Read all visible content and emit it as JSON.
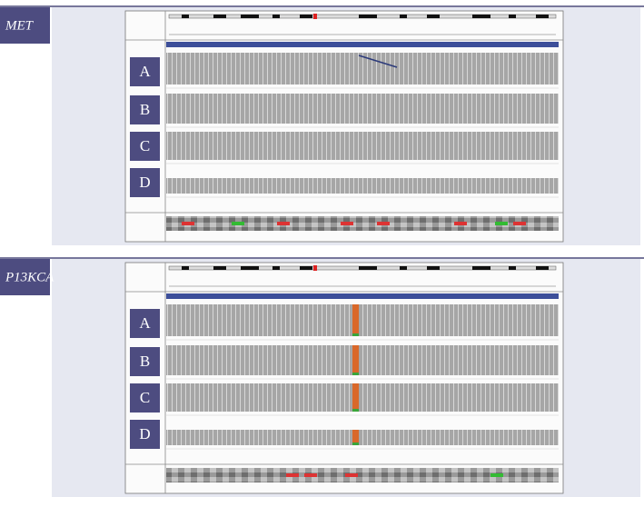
{
  "panels": [
    {
      "label": "MET",
      "tracks": [
        "A",
        "B",
        "C",
        "D"
      ]
    },
    {
      "label": "P13KCA",
      "tracks": [
        "A",
        "B",
        "C",
        "D"
      ]
    }
  ]
}
